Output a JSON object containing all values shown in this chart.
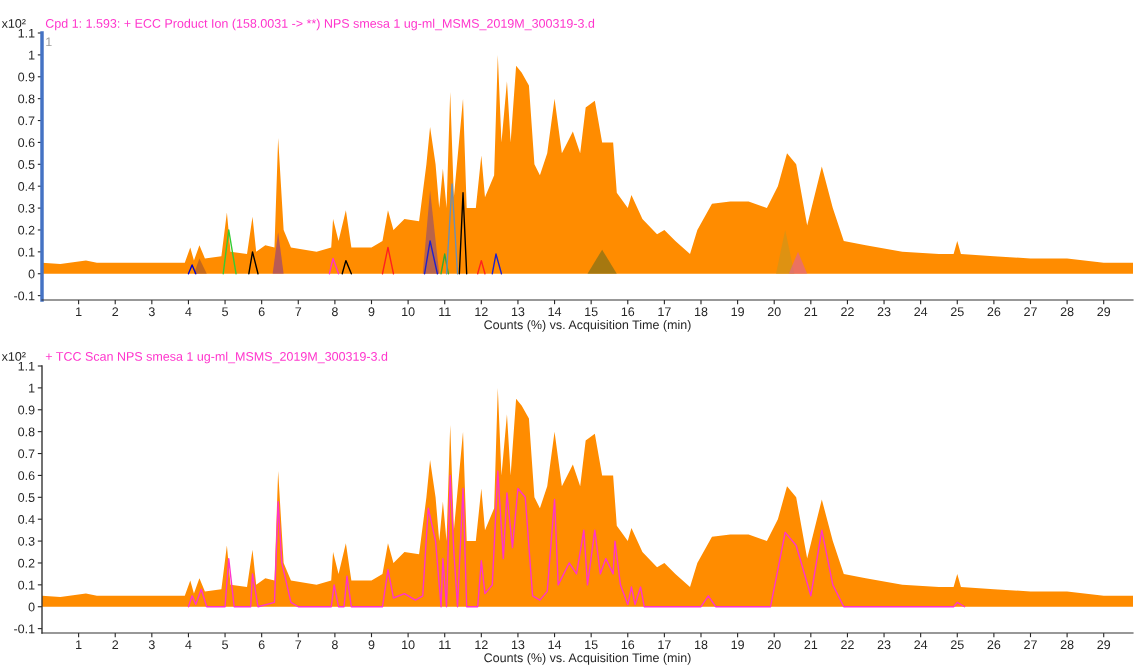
{
  "chart_data": [
    {
      "type": "area",
      "title": "Cpd 1: 1.593: + ECC Product Ion (158.0031 -> **) NPS smesa 1 ug-ml_MSMS_2019M_300319-3.d",
      "xlabel": "Counts (%) vs. Acquisition Time (min)",
      "annotations": [
        "x10²",
        "1"
      ],
      "xlim": [
        0,
        29.8
      ],
      "xticks": [
        1,
        2,
        3,
        4,
        5,
        6,
        7,
        8,
        9,
        10,
        11,
        12,
        13,
        14,
        15,
        16,
        17,
        18,
        19,
        20,
        21,
        22,
        23,
        24,
        25,
        26,
        27,
        28,
        29
      ],
      "ylim": [
        -0.12,
        1.1
      ],
      "yticks": [
        -0.1,
        0,
        0.1,
        0.2,
        0.3,
        0.4,
        0.5,
        0.6,
        0.7,
        0.8,
        0.9,
        1,
        1.1
      ],
      "grid": false,
      "legend": false,
      "series": [
        {
          "color": "#ff8c00",
          "x": [
            0.0,
            0.5,
            1.2,
            1.5,
            2.5,
            3.5,
            3.9,
            4.05,
            4.15,
            4.3,
            4.45,
            4.9,
            5.05,
            5.15,
            5.6,
            5.75,
            5.85,
            6.1,
            6.35,
            6.45,
            6.6,
            6.8,
            7.5,
            7.9,
            7.95,
            8.1,
            8.3,
            8.45,
            9.0,
            9.3,
            9.45,
            9.6,
            9.9,
            10.3,
            10.5,
            10.6,
            10.75,
            10.85,
            10.95,
            11.05,
            11.15,
            11.25,
            11.5,
            11.6,
            11.85,
            12.0,
            12.1,
            12.35,
            12.45,
            12.55,
            12.7,
            12.8,
            12.95,
            13.1,
            13.3,
            13.45,
            13.6,
            13.8,
            14.0,
            14.2,
            14.5,
            14.7,
            14.85,
            15.1,
            15.3,
            15.6,
            15.7,
            16.0,
            16.1,
            16.4,
            16.8,
            17.0,
            17.3,
            17.7,
            17.9,
            18.3,
            18.8,
            19.3,
            19.8,
            20.1,
            20.35,
            20.6,
            20.9,
            21.3,
            21.6,
            21.9,
            22.5,
            23.5,
            24.5,
            24.9,
            25.0,
            25.1,
            26.0,
            27.0,
            28.0,
            29.0,
            29.8
          ],
          "values": [
            0.05,
            0.045,
            0.06,
            0.05,
            0.05,
            0.05,
            0.05,
            0.12,
            0.06,
            0.13,
            0.07,
            0.08,
            0.28,
            0.1,
            0.09,
            0.26,
            0.1,
            0.13,
            0.12,
            0.62,
            0.2,
            0.12,
            0.1,
            0.12,
            0.25,
            0.15,
            0.29,
            0.12,
            0.12,
            0.15,
            0.29,
            0.2,
            0.25,
            0.24,
            0.5,
            0.67,
            0.5,
            0.3,
            0.48,
            0.3,
            0.83,
            0.35,
            0.8,
            0.3,
            0.3,
            0.54,
            0.35,
            0.45,
            1.0,
            0.6,
            0.88,
            0.6,
            0.95,
            0.92,
            0.86,
            0.5,
            0.45,
            0.55,
            0.8,
            0.55,
            0.65,
            0.55,
            0.76,
            0.79,
            0.6,
            0.6,
            0.37,
            0.3,
            0.36,
            0.25,
            0.18,
            0.2,
            0.15,
            0.09,
            0.2,
            0.32,
            0.33,
            0.33,
            0.3,
            0.4,
            0.55,
            0.5,
            0.22,
            0.49,
            0.3,
            0.15,
            0.13,
            0.1,
            0.09,
            0.09,
            0.15,
            0.09,
            0.08,
            0.07,
            0.07,
            0.05,
            0.05
          ]
        },
        {
          "type": "line",
          "color": "#0000cc",
          "x": [
            4.0,
            4.1,
            4.2
          ],
          "values": [
            0,
            0.04,
            0
          ]
        },
        {
          "type": "area",
          "color": "#a0522d",
          "x": [
            4.15,
            4.3,
            4.5
          ],
          "values": [
            0,
            0.07,
            0
          ]
        },
        {
          "type": "line",
          "color": "#33cc33",
          "x": [
            4.95,
            5.1,
            5.3
          ],
          "values": [
            0,
            0.2,
            0
          ]
        },
        {
          "type": "line",
          "color": "#000000",
          "x": [
            5.65,
            5.75,
            5.9
          ],
          "values": [
            0,
            0.1,
            0
          ]
        },
        {
          "type": "area",
          "color": "#8b3a8b",
          "x": [
            6.3,
            6.45,
            6.6
          ],
          "values": [
            0,
            0.19,
            0
          ]
        },
        {
          "type": "line",
          "color": "#ff33cc",
          "x": [
            7.85,
            7.95,
            8.1
          ],
          "values": [
            0,
            0.07,
            0
          ]
        },
        {
          "type": "line",
          "color": "#000000",
          "x": [
            8.2,
            8.3,
            8.45
          ],
          "values": [
            0,
            0.06,
            0
          ]
        },
        {
          "type": "line",
          "color": "#ff2020",
          "x": [
            9.3,
            9.45,
            9.6
          ],
          "values": [
            0,
            0.12,
            0
          ]
        },
        {
          "type": "area",
          "color": "#8b4a7a",
          "x": [
            10.4,
            10.6,
            10.85
          ],
          "values": [
            0,
            0.38,
            0
          ]
        },
        {
          "type": "line",
          "color": "#2020cc",
          "x": [
            10.45,
            10.6,
            10.8
          ],
          "values": [
            0,
            0.15,
            0
          ]
        },
        {
          "type": "line",
          "color": "#33aa33",
          "x": [
            10.9,
            11.0,
            11.1
          ],
          "values": [
            0,
            0.09,
            0
          ]
        },
        {
          "type": "line",
          "color": "#6b8fb5",
          "x": [
            11.05,
            11.2,
            11.35
          ],
          "values": [
            0,
            0.41,
            0
          ]
        },
        {
          "type": "line",
          "color": "#000000",
          "x": [
            11.4,
            11.5,
            11.6
          ],
          "values": [
            0,
            0.37,
            0
          ]
        },
        {
          "type": "line",
          "color": "#ff2020",
          "x": [
            11.9,
            12.0,
            12.1
          ],
          "values": [
            0,
            0.06,
            0
          ]
        },
        {
          "type": "line",
          "color": "#2020cc",
          "x": [
            12.3,
            12.4,
            12.55
          ],
          "values": [
            0,
            0.09,
            0
          ]
        },
        {
          "type": "area",
          "color": "#6b6b1a",
          "x": [
            14.9,
            15.3,
            15.7
          ],
          "values": [
            0,
            0.11,
            0
          ]
        },
        {
          "type": "area",
          "color": "#c8961e",
          "x": [
            20.05,
            20.3,
            20.55
          ],
          "values": [
            0,
            0.2,
            0
          ]
        },
        {
          "type": "area",
          "color": "#e060a0",
          "x": [
            20.4,
            20.65,
            20.9
          ],
          "values": [
            0,
            0.1,
            0
          ]
        }
      ]
    },
    {
      "type": "area",
      "title": "+ TCC Scan NPS smesa 1 ug-ml_MSMS_2019M_300319-3.d",
      "xlabel": "Counts (%) vs. Acquisition Time (min)",
      "annotations": [
        "x10²"
      ],
      "xlim": [
        0,
        29.8
      ],
      "xticks": [
        1,
        2,
        3,
        4,
        5,
        6,
        7,
        8,
        9,
        10,
        11,
        12,
        13,
        14,
        15,
        16,
        17,
        18,
        19,
        20,
        21,
        22,
        23,
        24,
        25,
        26,
        27,
        28,
        29
      ],
      "ylim": [
        -0.12,
        1.1
      ],
      "yticks": [
        -0.1,
        0,
        0.1,
        0.2,
        0.3,
        0.4,
        0.5,
        0.6,
        0.7,
        0.8,
        0.9,
        1,
        1.1
      ],
      "grid": false,
      "legend": false,
      "series": [
        {
          "color": "#ff8c00",
          "x": [
            0.0,
            0.5,
            1.2,
            1.5,
            2.5,
            3.5,
            3.9,
            4.05,
            4.15,
            4.3,
            4.45,
            4.9,
            5.05,
            5.15,
            5.6,
            5.75,
            5.85,
            6.1,
            6.35,
            6.45,
            6.6,
            6.8,
            7.5,
            7.9,
            7.95,
            8.1,
            8.3,
            8.45,
            9.0,
            9.3,
            9.45,
            9.6,
            9.9,
            10.3,
            10.5,
            10.6,
            10.75,
            10.85,
            10.95,
            11.05,
            11.15,
            11.25,
            11.5,
            11.6,
            11.85,
            12.0,
            12.1,
            12.35,
            12.45,
            12.55,
            12.7,
            12.8,
            12.95,
            13.1,
            13.3,
            13.45,
            13.6,
            13.8,
            14.0,
            14.2,
            14.5,
            14.7,
            14.85,
            15.1,
            15.3,
            15.6,
            15.7,
            16.0,
            16.1,
            16.4,
            16.8,
            17.0,
            17.3,
            17.7,
            17.9,
            18.3,
            18.8,
            19.3,
            19.8,
            20.1,
            20.35,
            20.6,
            20.9,
            21.3,
            21.6,
            21.9,
            22.5,
            23.5,
            24.5,
            24.9,
            25.0,
            25.1,
            26.0,
            27.0,
            28.0,
            29.0,
            29.8
          ],
          "values": [
            0.05,
            0.045,
            0.06,
            0.05,
            0.05,
            0.05,
            0.05,
            0.12,
            0.06,
            0.13,
            0.07,
            0.08,
            0.28,
            0.1,
            0.09,
            0.26,
            0.1,
            0.13,
            0.12,
            0.62,
            0.2,
            0.12,
            0.1,
            0.12,
            0.25,
            0.15,
            0.29,
            0.12,
            0.12,
            0.15,
            0.29,
            0.2,
            0.25,
            0.24,
            0.5,
            0.67,
            0.5,
            0.3,
            0.48,
            0.3,
            0.83,
            0.35,
            0.8,
            0.3,
            0.3,
            0.54,
            0.35,
            0.45,
            1.0,
            0.6,
            0.88,
            0.6,
            0.95,
            0.92,
            0.86,
            0.5,
            0.45,
            0.55,
            0.8,
            0.55,
            0.65,
            0.55,
            0.76,
            0.79,
            0.6,
            0.6,
            0.37,
            0.3,
            0.36,
            0.25,
            0.18,
            0.2,
            0.15,
            0.09,
            0.2,
            0.32,
            0.33,
            0.33,
            0.3,
            0.4,
            0.55,
            0.5,
            0.22,
            0.49,
            0.3,
            0.15,
            0.13,
            0.1,
            0.09,
            0.09,
            0.15,
            0.09,
            0.08,
            0.07,
            0.07,
            0.05,
            0.05
          ]
        },
        {
          "type": "line",
          "color": "#ff33cc",
          "x": [
            4.0,
            4.1,
            4.2,
            4.35,
            4.5,
            5.0,
            5.1,
            5.25,
            5.7,
            5.75,
            5.9,
            6.35,
            6.45,
            6.55,
            6.8,
            7.0,
            7.9,
            7.98,
            8.1,
            8.25,
            8.33,
            8.45,
            9.3,
            9.45,
            9.6,
            9.9,
            10.2,
            10.4,
            10.55,
            10.75,
            10.9,
            10.95,
            11.05,
            11.15,
            11.25,
            11.35,
            11.5,
            11.6,
            11.9,
            12.0,
            12.1,
            12.3,
            12.45,
            12.6,
            12.7,
            12.85,
            13.0,
            13.2,
            13.4,
            13.6,
            13.8,
            14.0,
            14.1,
            14.4,
            14.6,
            14.8,
            14.9,
            15.1,
            15.25,
            15.4,
            15.6,
            15.65,
            15.8,
            16.0,
            16.1,
            16.2,
            16.35,
            16.45,
            18.0,
            18.2,
            18.4,
            19.9,
            20.3,
            20.6,
            21.0,
            21.3,
            21.6,
            21.9,
            24.9,
            25.0,
            25.2
          ],
          "values": [
            0,
            0.05,
            0.01,
            0.08,
            0,
            0,
            0.22,
            0,
            0,
            0.15,
            0,
            0.02,
            0.48,
            0.2,
            0.02,
            0,
            0,
            0.1,
            0,
            0,
            0.14,
            0,
            0,
            0.17,
            0.04,
            0.06,
            0.03,
            0.05,
            0.45,
            0.3,
            0,
            0.22,
            0,
            0.6,
            0.25,
            0,
            0.54,
            0,
            0,
            0.21,
            0.06,
            0.1,
            0.62,
            0.22,
            0.52,
            0.27,
            0.54,
            0.5,
            0.05,
            0.03,
            0.07,
            0.49,
            0.1,
            0.2,
            0.15,
            0.35,
            0.1,
            0.35,
            0.15,
            0.22,
            0.15,
            0.3,
            0.1,
            0.01,
            0.09,
            0.01,
            0.09,
            0,
            0,
            0.05,
            0,
            0,
            0.34,
            0.28,
            0.05,
            0.35,
            0.1,
            0,
            0,
            0.02,
            0
          ]
        }
      ]
    }
  ]
}
